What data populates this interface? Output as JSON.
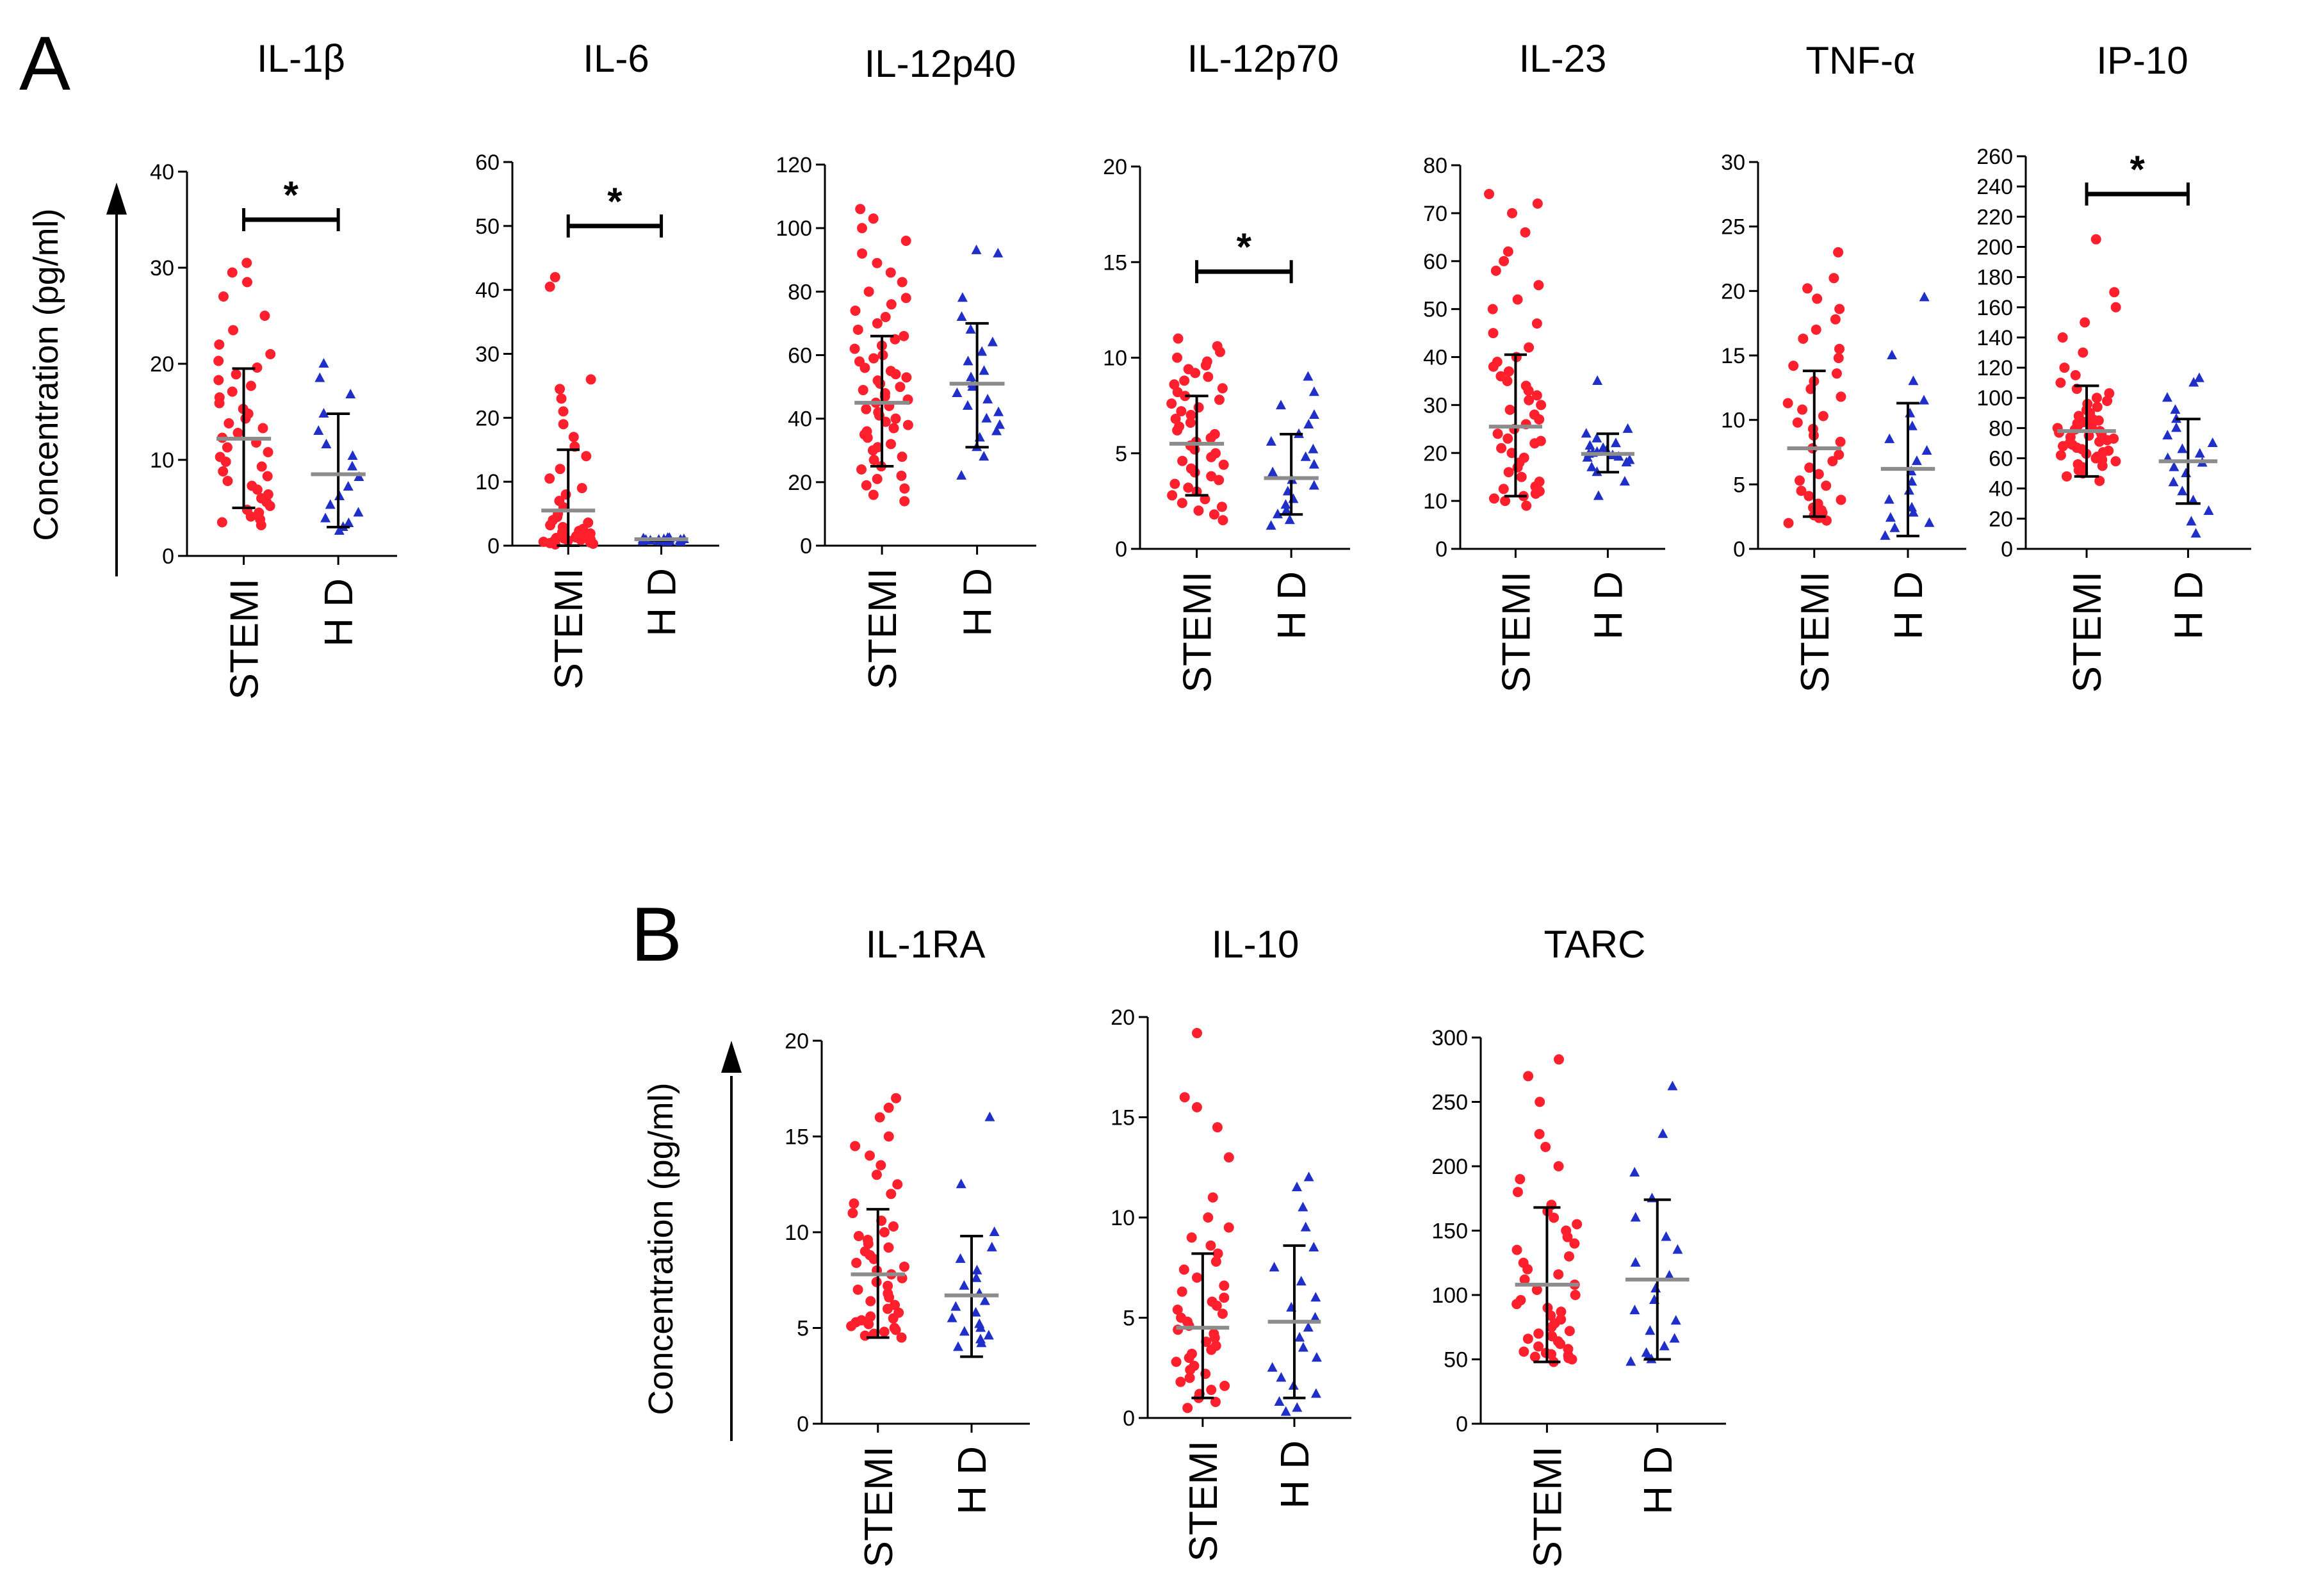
{
  "figure": {
    "panels": [
      {
        "letter": "A",
        "ylabel": "Concentration (pg/ml)"
      },
      {
        "letter": "B",
        "ylabel": "Concentration (pg/ml)"
      }
    ],
    "colors": {
      "stemi": "#ff1f2d",
      "hd": "#1f2fc8",
      "axis": "#000000",
      "median_line": "#8c8c8c"
    },
    "markers": {
      "stemi": "circle",
      "hd": "triangle"
    }
  },
  "chart_data": [
    {
      "type": "scatter",
      "panel": "A",
      "title": "IL-1β",
      "categories": [
        "STEMI",
        "H D"
      ],
      "ylim": [
        0,
        40
      ],
      "yticks": [
        0,
        10,
        20,
        30,
        40
      ],
      "series": [
        {
          "name": "STEMI",
          "values": [
            3.2,
            3.5,
            3.8,
            4.1,
            4.5,
            4.8,
            5.2,
            5.6,
            6.0,
            6.4,
            6.9,
            7.3,
            7.8,
            8.3,
            8.8,
            9.3,
            9.8,
            10.3,
            10.8,
            11.3,
            11.8,
            12.3,
            12.8,
            13.3,
            13.8,
            14.3,
            14.8,
            15.3,
            15.9,
            16.5,
            17.1,
            17.7,
            18.3,
            18.9,
            19.6,
            20.3,
            21.0,
            22.0,
            23.5,
            25.0,
            27.0,
            28.5,
            29.5,
            30.5
          ],
          "median": 12.2,
          "iqr_low": 5.0,
          "iqr_high": 19.5
        },
        {
          "name": "H D",
          "values": [
            2.6,
            3.0,
            3.4,
            3.9,
            4.5,
            5.3,
            6.2,
            7.2,
            8.2,
            9.3,
            10.4,
            11.6,
            13.0,
            14.8,
            16.8,
            18.5,
            20.0
          ],
          "median": 8.5,
          "iqr_low": 3.0,
          "iqr_high": 14.8
        }
      ],
      "significance": {
        "label": "*",
        "y": 35
      }
    },
    {
      "type": "scatter",
      "panel": "A",
      "title": "IL-6",
      "categories": [
        "STEMI",
        "H D"
      ],
      "ylim": [
        0,
        60
      ],
      "yticks": [
        0,
        10,
        20,
        30,
        40,
        50,
        60
      ],
      "series": [
        {
          "name": "STEMI",
          "values": [
            0.2,
            0.3,
            0.4,
            0.5,
            0.6,
            0.7,
            0.8,
            0.9,
            1.0,
            1.1,
            1.2,
            1.3,
            1.5,
            1.7,
            1.9,
            2.1,
            2.3,
            2.6,
            2.9,
            3.2,
            3.6,
            4.0,
            4.5,
            5.0,
            6.0,
            7.0,
            8.0,
            9.0,
            10.5,
            12.0,
            14.0,
            15.5,
            17.0,
            19.0,
            21.0,
            23.0,
            24.5,
            26.0,
            40.5,
            42.0
          ],
          "median": 5.5,
          "iqr_low": 0,
          "iqr_high": 15.0
        },
        {
          "name": "H D",
          "values": [
            0.6,
            0.6,
            0.7,
            0.7,
            0.7,
            0.8,
            0.8,
            0.8,
            0.9,
            0.9,
            0.9,
            1.0,
            1.0,
            1.0,
            1.1,
            1.1,
            1.2,
            1.2
          ],
          "median": 1.0,
          "iqr_low": 0.8,
          "iqr_high": 1.1
        }
      ],
      "significance": {
        "label": "*",
        "y": 50
      }
    },
    {
      "type": "scatter",
      "panel": "A",
      "title": "IL-12p40",
      "categories": [
        "STEMI",
        "H D"
      ],
      "ylim": [
        0,
        120
      ],
      "yticks": [
        0,
        20,
        40,
        60,
        80,
        100,
        120
      ],
      "series": [
        {
          "name": "STEMI",
          "values": [
            14,
            16,
            18,
            19,
            21,
            22,
            24,
            25,
            27,
            28,
            30,
            31,
            32,
            34,
            35,
            36,
            37,
            38,
            39,
            40,
            41,
            42,
            43,
            44,
            45,
            46,
            47,
            48,
            49,
            50,
            51,
            52,
            53,
            54,
            55,
            56,
            58,
            59,
            60,
            62,
            63,
            65,
            66,
            68,
            70,
            72,
            74,
            76,
            78,
            80,
            83,
            86,
            89,
            92,
            96,
            100,
            103,
            106
          ],
          "median": 45,
          "iqr_low": 25,
          "iqr_high": 66
        },
        {
          "name": "H D",
          "values": [
            22,
            28,
            31,
            34,
            36,
            38,
            40,
            42,
            44,
            46,
            48,
            50,
            51,
            53,
            55,
            58,
            61,
            64,
            68,
            72,
            78,
            92,
            93
          ],
          "median": 51,
          "iqr_low": 31,
          "iqr_high": 70
        }
      ]
    },
    {
      "type": "scatter",
      "panel": "A",
      "title": "IL-12p70",
      "categories": [
        "STEMI",
        "H D"
      ],
      "ylim": [
        0,
        20
      ],
      "yticks": [
        0,
        5,
        10,
        15,
        20
      ],
      "series": [
        {
          "name": "STEMI",
          "values": [
            1.5,
            1.8,
            2.0,
            2.2,
            2.4,
            2.6,
            2.8,
            3.0,
            3.2,
            3.4,
            3.6,
            3.8,
            4.0,
            4.2,
            4.4,
            4.6,
            4.8,
            5.0,
            5.2,
            5.4,
            5.6,
            5.8,
            6.0,
            6.2,
            6.4,
            6.6,
            6.8,
            7.0,
            7.2,
            7.4,
            7.6,
            7.8,
            8.0,
            8.2,
            8.4,
            8.6,
            8.8,
            9.0,
            9.2,
            9.4,
            9.6,
            9.8,
            10.0,
            10.3,
            10.6,
            11.0
          ],
          "median": 5.5,
          "iqr_low": 2.8,
          "iqr_high": 8.0
        },
        {
          "name": "H D",
          "values": [
            1.2,
            1.5,
            1.8,
            2.0,
            2.3,
            2.6,
            3.0,
            3.3,
            3.6,
            4.0,
            4.4,
            4.8,
            5.2,
            5.6,
            6.0,
            6.5,
            7.0,
            7.5,
            8.2,
            9.0
          ],
          "median": 3.7,
          "iqr_low": 1.8,
          "iqr_high": 6.0
        }
      ],
      "significance": {
        "label": "*",
        "y": 14.5
      }
    },
    {
      "type": "scatter",
      "panel": "A",
      "title": "IL-23",
      "categories": [
        "STEMI",
        "H D"
      ],
      "ylim": [
        0,
        80
      ],
      "yticks": [
        0,
        10,
        20,
        30,
        40,
        50,
        60,
        70,
        80
      ],
      "series": [
        {
          "name": "STEMI",
          "values": [
            9,
            10,
            10.5,
            11,
            11.5,
            12,
            12.5,
            13,
            14,
            15,
            16,
            17,
            18,
            19,
            20,
            21,
            22,
            22.5,
            23,
            24,
            25,
            26,
            27,
            28,
            29,
            30,
            31,
            32,
            33,
            34,
            35,
            36,
            37,
            38,
            39,
            40,
            42,
            45,
            47,
            50,
            52,
            55,
            58,
            60,
            62,
            66,
            70,
            72,
            74
          ],
          "median": 25.5,
          "iqr_low": 11,
          "iqr_high": 40.5
        },
        {
          "name": "H D",
          "values": [
            11,
            14,
            16,
            17,
            18,
            18.5,
            19,
            19.2,
            19.5,
            19.8,
            20,
            20.2,
            20.5,
            21,
            21.5,
            22,
            23,
            24,
            25,
            35
          ],
          "median": 19.8,
          "iqr_low": 16,
          "iqr_high": 24
        }
      ]
    },
    {
      "type": "scatter",
      "panel": "A",
      "title": "TNF-α",
      "categories": [
        "STEMI",
        "H D"
      ],
      "ylim": [
        0,
        30
      ],
      "yticks": [
        0,
        5,
        10,
        15,
        20,
        25,
        30
      ],
      "series": [
        {
          "name": "STEMI",
          "values": [
            2.0,
            2.2,
            2.4,
            2.6,
            2.8,
            3.0,
            3.2,
            3.5,
            3.8,
            4.1,
            4.5,
            4.9,
            5.3,
            5.8,
            6.3,
            6.8,
            7.3,
            7.8,
            8.3,
            8.8,
            9.3,
            9.8,
            10.3,
            10.8,
            11.3,
            11.8,
            12.4,
            13.0,
            13.6,
            14.2,
            14.8,
            15.5,
            16.3,
            17.0,
            17.8,
            18.6,
            19.4,
            20.2,
            21.0,
            23.0
          ],
          "median": 7.8,
          "iqr_low": 2.5,
          "iqr_high": 13.8
        },
        {
          "name": "H D",
          "values": [
            1.0,
            1.6,
            2.0,
            2.4,
            2.8,
            3.2,
            3.8,
            4.5,
            5.2,
            6.0,
            6.8,
            7.6,
            8.5,
            9.5,
            10.5,
            11.5,
            13.0,
            15.0,
            19.5
          ],
          "median": 6.2,
          "iqr_low": 1.0,
          "iqr_high": 11.3
        }
      ]
    },
    {
      "type": "scatter",
      "panel": "A",
      "title": "IP-10",
      "categories": [
        "STEMI",
        "H D"
      ],
      "ylim": [
        0,
        260
      ],
      "yticks": [
        0,
        20,
        40,
        60,
        80,
        100,
        120,
        140,
        160,
        180,
        200,
        220,
        240,
        260
      ],
      "series": [
        {
          "name": "STEMI",
          "values": [
            45,
            48,
            50,
            52,
            54,
            55,
            56,
            58,
            59,
            60,
            61,
            62,
            63,
            64,
            65,
            66,
            67,
            68,
            69,
            70,
            71,
            72,
            73,
            74,
            75,
            76,
            77,
            78,
            79,
            80,
            81,
            82,
            83,
            84,
            85,
            86,
            88,
            90,
            92,
            94,
            96,
            98,
            100,
            103,
            106,
            110,
            115,
            120,
            130,
            140,
            150,
            160,
            170,
            205
          ],
          "median": 78,
          "iqr_low": 48,
          "iqr_high": 108
        },
        {
          "name": "H D",
          "values": [
            10,
            18,
            25,
            32,
            38,
            44,
            50,
            54,
            57,
            60,
            63,
            66,
            70,
            75,
            80,
            86,
            92,
            100,
            110,
            113
          ],
          "median": 58,
          "iqr_low": 30,
          "iqr_high": 86
        }
      ],
      "significance": {
        "label": "*",
        "y": 235
      }
    },
    {
      "type": "scatter",
      "panel": "B",
      "title": "IL-1RA",
      "categories": [
        "STEMI",
        "H D"
      ],
      "ylim": [
        0,
        20
      ],
      "yticks": [
        0,
        5,
        10,
        15,
        20
      ],
      "series": [
        {
          "name": "STEMI",
          "values": [
            4.5,
            4.6,
            4.7,
            4.8,
            4.9,
            5.0,
            5.1,
            5.2,
            5.3,
            5.4,
            5.5,
            5.6,
            5.8,
            6.0,
            6.2,
            6.4,
            6.6,
            6.8,
            7.0,
            7.2,
            7.4,
            7.6,
            7.8,
            8.0,
            8.2,
            8.4,
            8.6,
            8.8,
            9.0,
            9.2,
            9.4,
            9.6,
            9.8,
            10.0,
            10.3,
            10.6,
            11.0,
            11.5,
            12.0,
            12.5,
            13.0,
            13.5,
            14.0,
            14.5,
            15.0,
            16.0,
            16.5,
            17.0
          ],
          "median": 7.8,
          "iqr_low": 4.5,
          "iqr_high": 11.2
        },
        {
          "name": "H D",
          "values": [
            4.0,
            4.2,
            4.4,
            4.6,
            4.8,
            5.0,
            5.2,
            5.5,
            5.8,
            6.1,
            6.4,
            6.8,
            7.2,
            7.6,
            8.0,
            8.6,
            9.2,
            10.0,
            12.5,
            16.0
          ],
          "median": 6.7,
          "iqr_low": 3.5,
          "iqr_high": 9.8
        }
      ]
    },
    {
      "type": "scatter",
      "panel": "B",
      "title": "IL-10",
      "categories": [
        "STEMI",
        "H D"
      ],
      "ylim": [
        0,
        20
      ],
      "yticks": [
        0,
        5,
        10,
        15,
        20
      ],
      "series": [
        {
          "name": "STEMI",
          "values": [
            0.5,
            0.8,
            1.0,
            1.2,
            1.4,
            1.6,
            1.8,
            2.0,
            2.2,
            2.4,
            2.6,
            2.8,
            3.0,
            3.2,
            3.4,
            3.6,
            3.8,
            4.0,
            4.2,
            4.4,
            4.6,
            4.8,
            5.0,
            5.2,
            5.4,
            5.6,
            5.8,
            6.0,
            6.3,
            6.6,
            7.0,
            7.4,
            7.8,
            8.2,
            8.6,
            9.0,
            9.5,
            10.0,
            11.0,
            13.0,
            14.5,
            15.5,
            16.0,
            19.2
          ],
          "median": 4.5,
          "iqr_low": 1.0,
          "iqr_high": 8.2
        },
        {
          "name": "H D",
          "values": [
            0.3,
            0.5,
            0.8,
            1.2,
            1.6,
            2.0,
            2.5,
            3.0,
            3.5,
            4.0,
            4.5,
            5.0,
            5.5,
            6.0,
            6.8,
            7.5,
            8.5,
            9.5,
            10.5,
            11.5,
            12.0
          ],
          "median": 4.8,
          "iqr_low": 1.0,
          "iqr_high": 8.6
        }
      ]
    },
    {
      "type": "scatter",
      "panel": "B",
      "title": "TARC",
      "categories": [
        "STEMI",
        "H D"
      ],
      "ylim": [
        0,
        300
      ],
      "yticks": [
        0,
        50,
        100,
        150,
        200,
        250,
        300
      ],
      "series": [
        {
          "name": "STEMI",
          "values": [
            48,
            50,
            51,
            52,
            53,
            54,
            55,
            56,
            58,
            60,
            62,
            64,
            66,
            68,
            70,
            72,
            75,
            78,
            81,
            84,
            87,
            90,
            93,
            96,
            100,
            104,
            108,
            112,
            116,
            120,
            125,
            130,
            135,
            140,
            145,
            150,
            155,
            160,
            165,
            170,
            180,
            190,
            200,
            215,
            225,
            250,
            270,
            283
          ],
          "median": 108,
          "iqr_low": 48,
          "iqr_high": 168
        },
        {
          "name": "H D",
          "values": [
            48,
            50,
            52,
            55,
            60,
            66,
            72,
            80,
            88,
            96,
            105,
            115,
            125,
            135,
            145,
            160,
            175,
            195,
            225,
            262
          ],
          "median": 112,
          "iqr_low": 50,
          "iqr_high": 174
        }
      ]
    }
  ]
}
